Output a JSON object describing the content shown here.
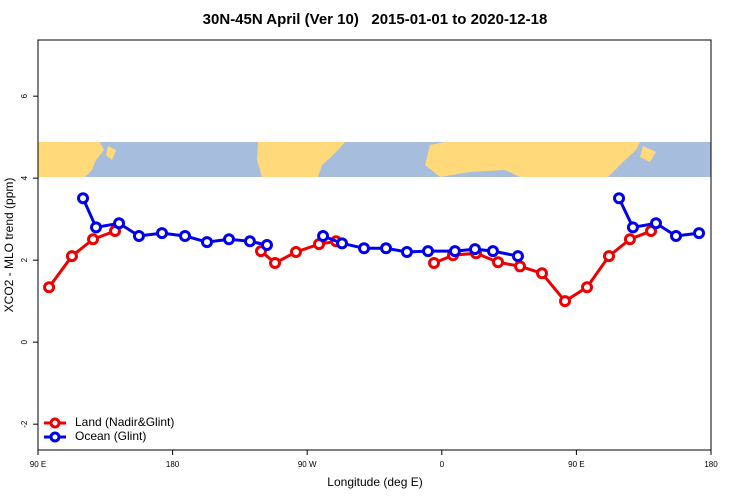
{
  "chart_data": {
    "type": "line",
    "title": "30N-45N April (Ver 10)   2015-01-01 to 2020-12-18",
    "x_label": "Longitude (deg E)",
    "y_label": "XCO2 - MLO trend (ppm)",
    "xlim": [
      90,
      540
    ],
    "xticks": [
      {
        "value": 90,
        "label": "90 E"
      },
      {
        "value": 180,
        "label": "180"
      },
      {
        "value": 270,
        "label": "90 W"
      },
      {
        "value": 360,
        "label": "0"
      },
      {
        "value": 450,
        "label": "90 E"
      },
      {
        "value": 540,
        "label": "180"
      }
    ],
    "ylim": [
      -2.63,
      7.37
    ],
    "yticks": [
      -2,
      0,
      2,
      4,
      6
    ],
    "legend": "bottom-left",
    "series": [
      {
        "name": "Land (Nadir&Glint)",
        "color": "#ee0000",
        "x": [
          97.4,
          112.7,
          126.8,
          141.5,
          null,
          239.1,
          248.5,
          262.5,
          277.9,
          289.3,
          null,
          354.8,
          367.5,
          382.9,
          397.6,
          412.3,
          427.0,
          442.4,
          457.1,
          471.8,
          485.8,
          499.9
        ],
        "values": [
          1.34,
          2.1,
          2.51,
          2.71,
          null,
          2.22,
          1.93,
          2.2,
          2.39,
          2.46,
          null,
          1.93,
          2.12,
          2.17,
          1.95,
          1.85,
          1.68,
          1.0,
          1.34,
          2.1,
          2.51,
          2.71
        ]
      },
      {
        "name": "Ocean (Glint)",
        "color": "#0000ee",
        "x": [
          120.1,
          128.8,
          144.2,
          157.5,
          172.9,
          188.3,
          203.0,
          217.7,
          231.7,
          243.1,
          null,
          280.6,
          293.3,
          308.0,
          322.7,
          336.7,
          350.8,
          368.8,
          382.2,
          394.2,
          410.9,
          null,
          478.5,
          487.8,
          503.2,
          516.6,
          532.0
        ],
        "values": [
          3.51,
          2.8,
          2.9,
          2.59,
          2.66,
          2.59,
          2.44,
          2.51,
          2.46,
          2.37,
          null,
          2.59,
          2.41,
          2.29,
          2.29,
          2.2,
          2.22,
          2.22,
          2.27,
          2.22,
          2.1,
          null,
          3.51,
          2.8,
          2.9,
          2.59,
          2.66
        ]
      }
    ]
  }
}
